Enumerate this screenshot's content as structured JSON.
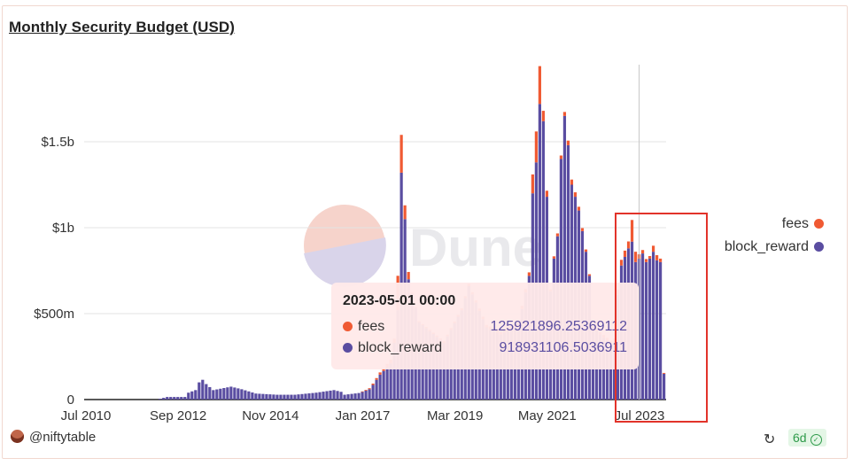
{
  "chart_data": {
    "type": "bar",
    "stacked": true,
    "title": "Monthly Security Budget (USD)",
    "ytick_labels": [
      "0",
      "$500m",
      "$1b",
      "$1.5b"
    ],
    "yticks": [
      0,
      500000000,
      1000000000,
      1500000000
    ],
    "ylim": [
      0,
      2000000000
    ],
    "xtick_labels": [
      "Jul 2010",
      "Sep 2012",
      "Nov 2014",
      "Jan 2017",
      "Mar 2019",
      "May 2021",
      "Jul 2023"
    ],
    "xlim": [
      "2010-07",
      "2024-02"
    ],
    "legend": [
      "fees",
      "block_reward"
    ],
    "legend_position": "right",
    "grid": true,
    "colors": {
      "fees": "#f05a33",
      "block_reward": "#5a4da1"
    },
    "series": [
      {
        "name": "block_reward",
        "anchors": [
          [
            "2010-07",
            0
          ],
          [
            "2012-03",
            0
          ],
          [
            "2012-06",
            15000000
          ],
          [
            "2012-11",
            15000000
          ],
          [
            "2012-12",
            40000000
          ],
          [
            "2013-02",
            55000000
          ],
          [
            "2013-03",
            100000000
          ],
          [
            "2013-04",
            115000000
          ],
          [
            "2013-05",
            90000000
          ],
          [
            "2013-07",
            55000000
          ],
          [
            "2013-12",
            75000000
          ],
          [
            "2014-03",
            60000000
          ],
          [
            "2014-07",
            35000000
          ],
          [
            "2015-01",
            28000000
          ],
          [
            "2015-06",
            28000000
          ],
          [
            "2015-12",
            40000000
          ],
          [
            "2016-05",
            55000000
          ],
          [
            "2016-07",
            45000000
          ],
          [
            "2016-08",
            28000000
          ],
          [
            "2016-12",
            38000000
          ],
          [
            "2017-03",
            60000000
          ],
          [
            "2017-04",
            85000000
          ],
          [
            "2017-06",
            145000000
          ],
          [
            "2017-09",
            210000000
          ],
          [
            "2017-10",
            330000000
          ],
          [
            "2017-11",
            520000000
          ],
          [
            "2017-12",
            1320000000
          ],
          [
            "2018-01",
            1050000000
          ],
          [
            "2018-02",
            700000000
          ],
          [
            "2018-05",
            450000000
          ],
          [
            "2018-12",
            330000000
          ],
          [
            "2019-05",
            520000000
          ],
          [
            "2019-07",
            660000000
          ],
          [
            "2019-12",
            420000000
          ],
          [
            "2020-04",
            380000000
          ],
          [
            "2020-09",
            430000000
          ],
          [
            "2020-12",
            720000000
          ],
          [
            "2021-01",
            1200000000
          ],
          [
            "2021-02",
            1380000000
          ],
          [
            "2021-03",
            1720000000
          ],
          [
            "2021-04",
            1620000000
          ],
          [
            "2021-05",
            1180000000
          ],
          [
            "2021-06",
            630000000
          ],
          [
            "2021-07",
            820000000
          ],
          [
            "2021-08",
            950000000
          ],
          [
            "2021-09",
            1400000000
          ],
          [
            "2021-10",
            1650000000
          ],
          [
            "2021-11",
            1480000000
          ],
          [
            "2021-12",
            1250000000
          ],
          [
            "2022-01",
            1180000000
          ],
          [
            "2022-02",
            1100000000
          ],
          [
            "2022-03",
            980000000
          ],
          [
            "2022-04",
            860000000
          ],
          [
            "2022-05",
            720000000
          ],
          [
            "2022-06",
            420000000
          ],
          [
            "2022-11",
            320000000
          ],
          [
            "2022-12",
            330000000
          ],
          [
            "2023-01",
            610000000
          ],
          [
            "2023-02",
            780000000
          ],
          [
            "2023-03",
            830000000
          ],
          [
            "2023-04",
            880000000
          ],
          [
            "2023-05",
            918931106.5036911
          ],
          [
            "2023-06",
            800000000
          ],
          [
            "2023-07",
            820000000
          ],
          [
            "2023-08",
            850000000
          ],
          [
            "2023-09",
            800000000
          ],
          [
            "2023-10",
            820000000
          ],
          [
            "2023-11",
            860000000
          ],
          [
            "2023-12",
            810000000
          ],
          [
            "2024-01",
            800000000
          ],
          [
            "2024-02",
            150000000
          ]
        ]
      },
      {
        "name": "fees",
        "anchors": [
          [
            "2010-07",
            0
          ],
          [
            "2016-12",
            0
          ],
          [
            "2017-05",
            10000000
          ],
          [
            "2017-10",
            25000000
          ],
          [
            "2017-11",
            200000000
          ],
          [
            "2017-12",
            220000000
          ],
          [
            "2018-01",
            80000000
          ],
          [
            "2018-03",
            5000000
          ],
          [
            "2020-12",
            20000000
          ],
          [
            "2021-01",
            110000000
          ],
          [
            "2021-02",
            180000000
          ],
          [
            "2021-03",
            220000000
          ],
          [
            "2021-04",
            60000000
          ],
          [
            "2021-06",
            10000000
          ],
          [
            "2021-12",
            30000000
          ],
          [
            "2022-06",
            5000000
          ],
          [
            "2023-04",
            40000000
          ],
          [
            "2023-05",
            125921896.25369112
          ],
          [
            "2023-06",
            60000000
          ],
          [
            "2023-07",
            25000000
          ],
          [
            "2023-08",
            20000000
          ],
          [
            "2023-10",
            15000000
          ],
          [
            "2023-11",
            35000000
          ],
          [
            "2023-12",
            30000000
          ],
          [
            "2024-01",
            20000000
          ],
          [
            "2024-02",
            5000000
          ]
        ]
      }
    ],
    "hover_marker": "2023-07",
    "watermark": "Dune"
  },
  "tooltip": {
    "title": "2023-05-01 00:00",
    "rows": [
      {
        "label": "fees",
        "value": "125921896.25369112",
        "color": "#f05a33"
      },
      {
        "label": "block_reward",
        "value": "918931106.5036911",
        "color": "#5a4da1"
      }
    ]
  },
  "footer": {
    "author": "@niftytable",
    "age": "6d"
  }
}
